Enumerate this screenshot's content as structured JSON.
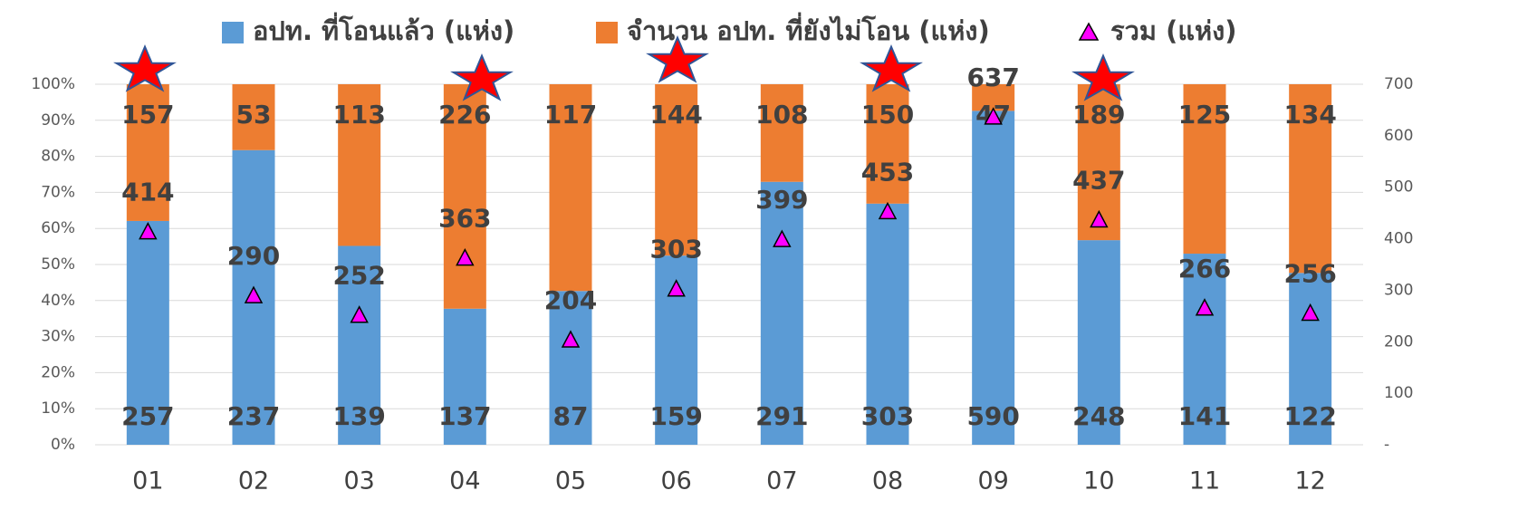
{
  "chart_data": {
    "type": "bar",
    "stacking": "percent",
    "categories": [
      "01",
      "02",
      "03",
      "04",
      "05",
      "06",
      "07",
      "08",
      "09",
      "10",
      "11",
      "12"
    ],
    "series": [
      {
        "name": "อปท. ที่โอนแล้ว (แห่ง)",
        "color": "#5b9bd5",
        "values": [
          257,
          237,
          139,
          137,
          87,
          159,
          291,
          303,
          590,
          248,
          141,
          122
        ]
      },
      {
        "name": "จำนวน อปท. ที่ยังไม่โอน (แห่ง)",
        "color": "#ed7d31",
        "values": [
          157,
          53,
          113,
          226,
          117,
          144,
          108,
          150,
          47,
          189,
          125,
          134
        ]
      },
      {
        "name": "รวม (แห่ง)",
        "color": "#ff00ff",
        "type": "triangle",
        "axis": "y2",
        "values": [
          414,
          290,
          252,
          363,
          204,
          303,
          399,
          453,
          637,
          437,
          266,
          256
        ]
      }
    ],
    "ylim": [
      0,
      100
    ],
    "yticks": [
      {
        "value": 0,
        "label": "0%"
      },
      {
        "value": 10,
        "label": "10%"
      },
      {
        "value": 20,
        "label": "20%"
      },
      {
        "value": 30,
        "label": "30%"
      },
      {
        "value": 40,
        "label": "40%"
      },
      {
        "value": 50,
        "label": "50%"
      },
      {
        "value": 60,
        "label": "60%"
      },
      {
        "value": 70,
        "label": "70%"
      },
      {
        "value": 80,
        "label": "80%"
      },
      {
        "value": 90,
        "label": "90%"
      },
      {
        "value": 100,
        "label": "100%"
      }
    ],
    "y2lim": [
      0,
      700
    ],
    "y2ticks": [
      {
        "value": 0,
        "label": "-"
      },
      100,
      200,
      300,
      400,
      500,
      600,
      700
    ],
    "grid": true,
    "legend": "top"
  }
}
